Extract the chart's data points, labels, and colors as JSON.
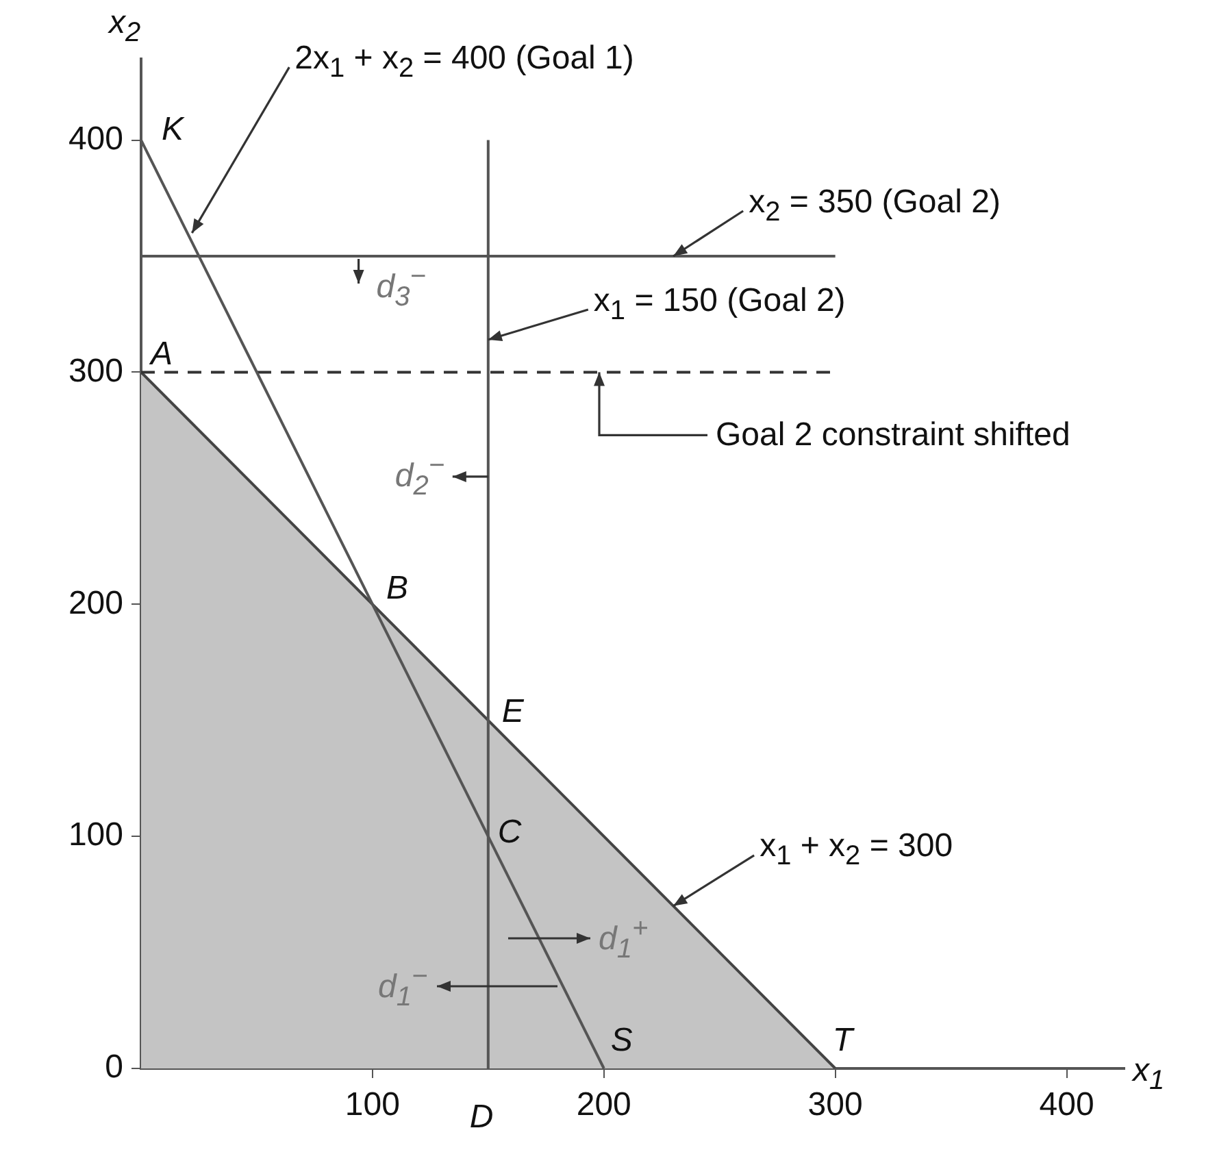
{
  "chart_data": {
    "type": "line",
    "xlabel": "x$_{1}$",
    "ylabel": "x$_{2}$",
    "xlim": [
      0,
      425
    ],
    "ylim": [
      0,
      435
    ],
    "xticks": [
      100,
      200,
      300,
      400
    ],
    "yticks": [
      0,
      100,
      200,
      300,
      400
    ],
    "marker": "none",
    "series": [
      {
        "type": "area",
        "x": [
          0,
          300
        ],
        "values": [
          300,
          0
        ],
        "color": "#c4c4c4"
      },
      {
        "x": [
          0,
          200
        ],
        "values": [
          400,
          0
        ],
        "color": "#555555"
      },
      {
        "x": [
          0,
          300
        ],
        "values": [
          350,
          350
        ],
        "color": "#555555"
      },
      {
        "x": [
          150,
          150
        ],
        "values": [
          0,
          400
        ],
        "color": "#555555"
      },
      {
        "x": [
          0,
          300
        ],
        "values": [
          300,
          300
        ],
        "color": "#333333",
        "line_style": "dashed"
      }
    ],
    "annotations": [
      {
        "text": "2x$_{1}$ + x$_{2}$ = 400 (Goal 1)",
        "x": 22,
        "y": 360
      },
      {
        "text": "x$_{2}$ = 350 (Goal 2)",
        "x": 230,
        "y": 350
      },
      {
        "text": "x$_{1}$ = 150 (Goal 2)",
        "x": 150,
        "y": 314
      },
      {
        "text": "Goal 2 constraint shifted",
        "x": 198,
        "y": 300
      },
      {
        "text": "x$_{1}$ + x$_{2}$ = 300",
        "x": 230,
        "y": 70
      },
      {
        "text": "K",
        "x": 0,
        "y": 400
      },
      {
        "text": "A",
        "x": 0,
        "y": 300
      },
      {
        "text": "B",
        "x": 100,
        "y": 200
      },
      {
        "text": "E",
        "x": 150,
        "y": 150
      },
      {
        "text": "C",
        "x": 150,
        "y": 100
      },
      {
        "text": "S",
        "x": 200,
        "y": 0
      },
      {
        "text": "T",
        "x": 300,
        "y": 0
      },
      {
        "text": "D",
        "x": 150,
        "y": 0
      },
      {
        "text": "d$_{3}$$^{−}$",
        "x": 94,
        "y": 350
      },
      {
        "text": "d$_{2}$$^{−}$",
        "x": 150,
        "y": 255
      },
      "d$_{1}$$^{−}$",
      "d$_{1}$$^{+}$"
    ]
  }
}
